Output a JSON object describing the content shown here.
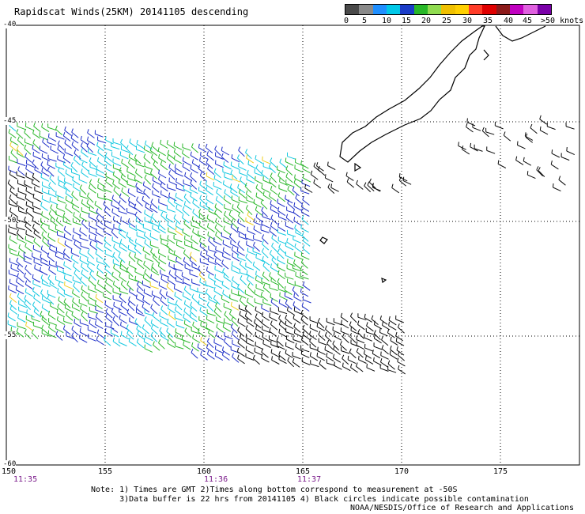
{
  "title": "Rapidscat Winds(25KM) 20141105 descending",
  "legend": {
    "colors": [
      "#4a4a4a",
      "#8a8a8a",
      "#1f8fff",
      "#00c8e8",
      "#1a3cc8",
      "#28b828",
      "#90dc50",
      "#f0c000",
      "#ffd000",
      "#ff3c28",
      "#e00000",
      "#8c1a1a",
      "#c000c0",
      "#e060e0",
      "#7a00a8"
    ],
    "labels": [
      "0",
      "5",
      "10",
      "15",
      "20",
      "25",
      "30",
      "35",
      "40",
      "45",
      ">50 knots"
    ]
  },
  "lat_labels": [
    "-40",
    "-45",
    "-50",
    "-55",
    "-60"
  ],
  "lon_labels": [
    "150",
    "155",
    "160",
    "165",
    "170",
    "175"
  ],
  "time_labels": [
    "11:35",
    "11:36",
    "11:37"
  ],
  "notes": "Note: 1) Times are GMT 2)Times along bottom correspond to measurement at -50S\n      3)Data buffer is 22 hrs from 20141105 4) Black circles indicate possible contamination",
  "credit": "NOAA/NESDIS/Office of Research and Applications",
  "wind_colors": [
    "#0a0a0a",
    "#1e2fc8",
    "#12c8e0",
    "#2cb82c",
    "#f0d020"
  ]
}
